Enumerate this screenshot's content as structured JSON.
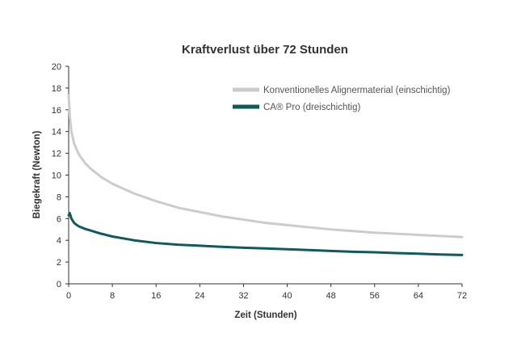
{
  "chart_data": {
    "type": "line",
    "title": "Kraftverlust über 72 Stunden",
    "xlabel": "Zeit (Stunden)",
    "ylabel": "Biegekraft (Newton)",
    "xlim": [
      0,
      72
    ],
    "ylim": [
      0,
      20
    ],
    "xticks": [
      "0",
      "8",
      "16",
      "24",
      "32",
      "40",
      "48",
      "56",
      "64",
      "72"
    ],
    "yticks": [
      "0",
      "2",
      "4",
      "6",
      "8",
      "10",
      "12",
      "14",
      "16",
      "18",
      "20"
    ],
    "grid": false,
    "legend_position": "top-right",
    "series": [
      {
        "name": "Konventionelles Alignermaterial (einschichtig)",
        "color": "#cccccc",
        "x": [
          0,
          0.25,
          0.5,
          1,
          1.5,
          2,
          3,
          4,
          6,
          8,
          12,
          16,
          20,
          24,
          28,
          32,
          36,
          40,
          44,
          48,
          52,
          56,
          60,
          64,
          68,
          72
        ],
        "y": [
          17.3,
          15.2,
          14.0,
          12.9,
          12.3,
          11.8,
          11.1,
          10.6,
          9.8,
          9.2,
          8.3,
          7.6,
          7.0,
          6.6,
          6.2,
          5.9,
          5.6,
          5.4,
          5.2,
          5.0,
          4.85,
          4.7,
          4.6,
          4.5,
          4.4,
          4.3
        ]
      },
      {
        "name": "CA® Pro (dreischichtig)",
        "color": "#0e5a5e",
        "x": [
          0,
          0.2,
          0.5,
          1,
          1.5,
          2,
          3,
          4,
          6,
          8,
          12,
          16,
          20,
          24,
          28,
          32,
          36,
          40,
          44,
          48,
          52,
          56,
          60,
          64,
          68,
          72
        ],
        "y": [
          6.3,
          6.5,
          6.0,
          5.6,
          5.4,
          5.25,
          5.05,
          4.9,
          4.6,
          4.35,
          4.0,
          3.75,
          3.6,
          3.5,
          3.4,
          3.32,
          3.25,
          3.18,
          3.1,
          3.02,
          2.95,
          2.9,
          2.83,
          2.77,
          2.7,
          2.65
        ]
      }
    ]
  }
}
